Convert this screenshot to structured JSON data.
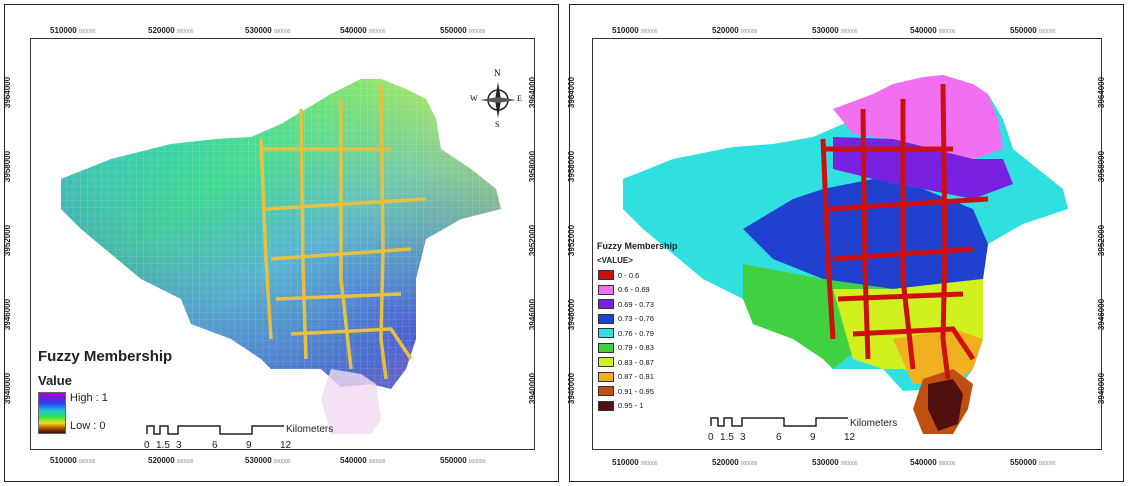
{
  "x_ticks": [
    "510000",
    "520000",
    "530000",
    "540000",
    "550000"
  ],
  "y_ticks": [
    "3964000",
    "3958000",
    "3952000",
    "3946000",
    "3940000"
  ],
  "tick_suffix": "000000",
  "north_arrow": {
    "n": "N",
    "s": "S",
    "e": "E",
    "w": "W",
    "icon": "compass-rose-icon"
  },
  "left_map": {
    "legend_title": "Fuzzy Membership",
    "legend_subtitle": "Value",
    "high_label": "High : 1",
    "low_label": "Low : 0",
    "ramp_colors": [
      "#b000d0",
      "#2a3cf0",
      "#1ec8d8",
      "#30e040",
      "#f0e020",
      "#b05000",
      "#3a0a00"
    ]
  },
  "right_map": {
    "legend_title": "Fuzzy Membership",
    "legend_subtitle": "<VALUE>",
    "classes": [
      {
        "label": "0 - 0.6",
        "color": "#cc1010"
      },
      {
        "label": "0.6 - 0.69",
        "color": "#f070f0"
      },
      {
        "label": "0.69 - 0.73",
        "color": "#7a20e0"
      },
      {
        "label": "0.73 - 0.76",
        "color": "#2040d0"
      },
      {
        "label": "0.76 - 0.79",
        "color": "#30e0e0"
      },
      {
        "label": "0.79 - 0.83",
        "color": "#40d040"
      },
      {
        "label": "0.83 - 0.87",
        "color": "#d0f020"
      },
      {
        "label": "0.87 - 0.91",
        "color": "#f0b020"
      },
      {
        "label": "0.91 - 0.95",
        "color": "#c05010"
      },
      {
        "label": "0.95 - 1",
        "color": "#501010"
      }
    ]
  },
  "scale_bar": {
    "unit": "Kilometers",
    "labels": [
      "0",
      "1.5",
      "3",
      "6",
      "9",
      "12"
    ]
  }
}
